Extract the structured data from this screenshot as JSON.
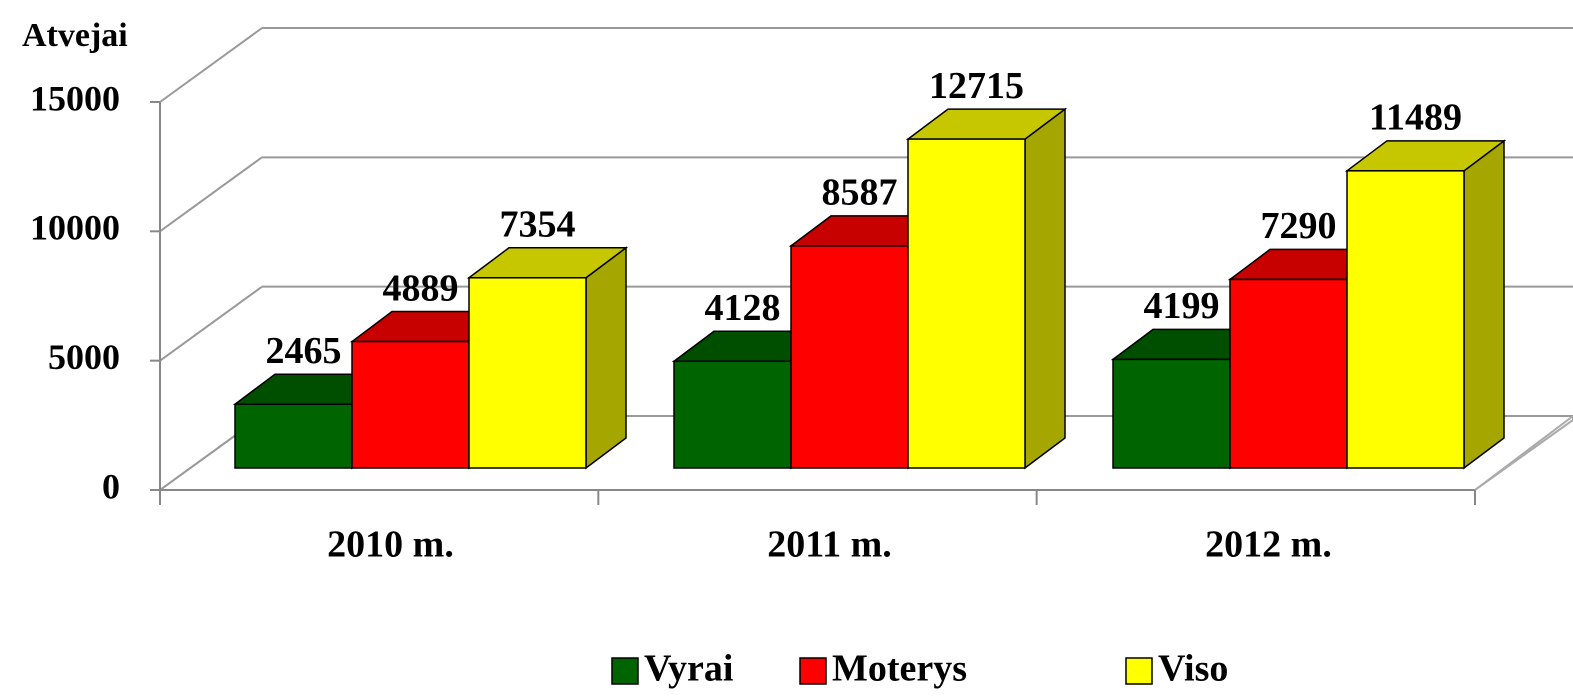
{
  "chart_data": {
    "type": "bar3d",
    "y_axis_label": "Atvejai",
    "categories": [
      "2010 m.",
      "2011 m.",
      "2012 m."
    ],
    "series": [
      {
        "name": "Vyrai",
        "color": "#006400",
        "values": [
          2465,
          4128,
          4199
        ]
      },
      {
        "name": "Moterys",
        "color": "#ff0000",
        "values": [
          4889,
          8587,
          7290
        ]
      },
      {
        "name": "Viso",
        "color": "#ffff00",
        "values": [
          7354,
          12715,
          11489
        ]
      }
    ],
    "ylim": [
      0,
      15000
    ],
    "yticks": [
      0,
      5000,
      10000,
      15000
    ],
    "grid": true,
    "legend": "bottom"
  }
}
